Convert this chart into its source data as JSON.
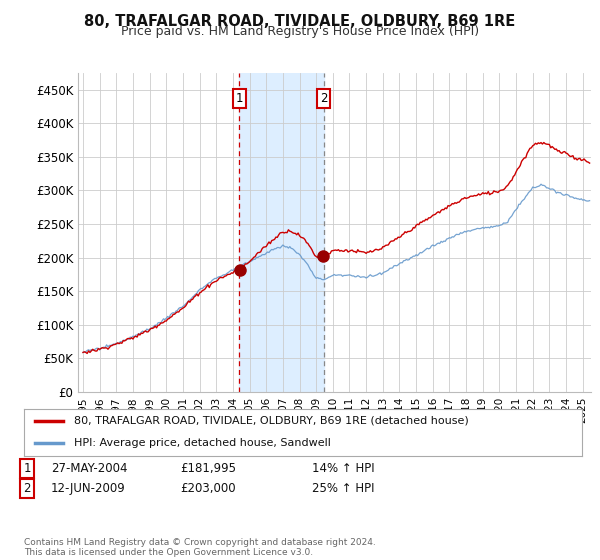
{
  "title": "80, TRAFALGAR ROAD, TIVIDALE, OLDBURY, B69 1RE",
  "subtitle": "Price paid vs. HM Land Registry's House Price Index (HPI)",
  "ylim": [
    0,
    475000
  ],
  "yticks": [
    0,
    50000,
    100000,
    150000,
    200000,
    250000,
    300000,
    350000,
    400000,
    450000
  ],
  "ytick_labels": [
    "£0",
    "£50K",
    "£100K",
    "£150K",
    "£200K",
    "£250K",
    "£300K",
    "£350K",
    "£400K",
    "£450K"
  ],
  "xlim_start": 1994.7,
  "xlim_end": 2025.5,
  "transaction1_year": 2004.38,
  "transaction1_price": 181995,
  "transaction2_year": 2009.44,
  "transaction2_price": 203000,
  "legend1": "80, TRAFALGAR ROAD, TIVIDALE, OLDBURY, B69 1RE (detached house)",
  "legend2": "HPI: Average price, detached house, Sandwell",
  "label1_date": "27-MAY-2004",
  "label1_price": "£181,995",
  "label1_hpi": "14% ↑ HPI",
  "label2_date": "12-JUN-2009",
  "label2_price": "£203,000",
  "label2_hpi": "25% ↑ HPI",
  "footer": "Contains HM Land Registry data © Crown copyright and database right 2024.\nThis data is licensed under the Open Government Licence v3.0.",
  "line_color_price": "#cc0000",
  "line_color_hpi": "#6699cc",
  "shade_color": "#ddeeff",
  "grid_color": "#cccccc",
  "background_color": "#ffffff"
}
